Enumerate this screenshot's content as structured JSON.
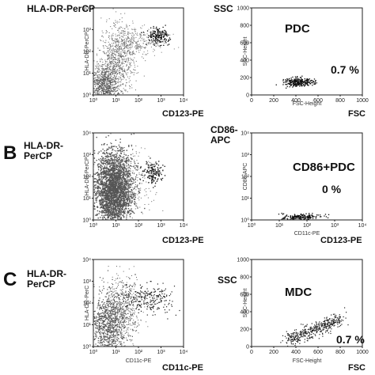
{
  "panels": [
    {
      "letter": "",
      "left_plot": {
        "y_title": "HLA-DR-PerCP",
        "y_axis_small": "HLA-DR-PerCP",
        "x_title": "CD123-PE",
        "x_ticks": [
          "10⁰",
          "10¹",
          "10²",
          "10³",
          "10⁴"
        ],
        "y_ticks": [
          "10⁰",
          "10¹",
          "10²",
          "10³",
          "10⁴"
        ]
      },
      "right_plot": {
        "y_title": "SSC",
        "y_axis_small": "SSC-Height",
        "x_axis_small": "FSC-Height",
        "x_title": "FSC",
        "gate": "PDC",
        "percent": "0.7 %",
        "x_ticks": [
          "0",
          "200",
          "400",
          "600",
          "800",
          "1000"
        ],
        "y_ticks": [
          "0",
          "200",
          "400",
          "600",
          "800",
          "1000"
        ]
      }
    },
    {
      "letter": "B",
      "left_plot": {
        "y_title": "HLA-DR-PerCP",
        "y_axis_small": "HLA-DR-PerCP",
        "x_title": "CD123-PE",
        "x_ticks": [
          "10⁰",
          "10¹",
          "10²",
          "10³",
          "10⁴"
        ],
        "y_ticks": [
          "10⁰",
          "10¹",
          "10²",
          "10³",
          "10⁴"
        ]
      },
      "right_plot": {
        "y_title": "CD86-APC",
        "y_axis_small": "CD86-APC",
        "x_axis_small": "CD11c-PE",
        "x_title": "CD123-PE",
        "gate": "CD86+PDC",
        "percent": "0 %",
        "x_ticks": [
          "10⁰",
          "10¹",
          "10²",
          "10³",
          "10⁴"
        ],
        "y_ticks": [
          "10⁰",
          "10¹",
          "10²",
          "10³",
          "10⁴"
        ]
      }
    },
    {
      "letter": "C",
      "left_plot": {
        "y_title": "HLA-DR-PerCP",
        "y_axis_small": "HLA-DR-PerC",
        "x_axis_small": "CD11c-PE",
        "x_title": "CD11c-PE",
        "x_ticks": [
          "10⁰",
          "10¹",
          "10²",
          "10³",
          "10⁴"
        ],
        "y_ticks": [
          "10⁰",
          "10¹",
          "10²",
          "10³",
          "10⁴"
        ]
      },
      "right_plot": {
        "y_title": "SSC",
        "y_axis_small": "SSC-Height",
        "x_axis_small": "FSC-Height",
        "x_title": "FSC",
        "gate": "MDC",
        "percent": "0.7 %",
        "x_ticks": [
          "0",
          "200",
          "400",
          "600",
          "800",
          "1000"
        ],
        "y_ticks": [
          "0",
          "200",
          "400",
          "600",
          "800",
          "1000"
        ]
      }
    }
  ]
}
